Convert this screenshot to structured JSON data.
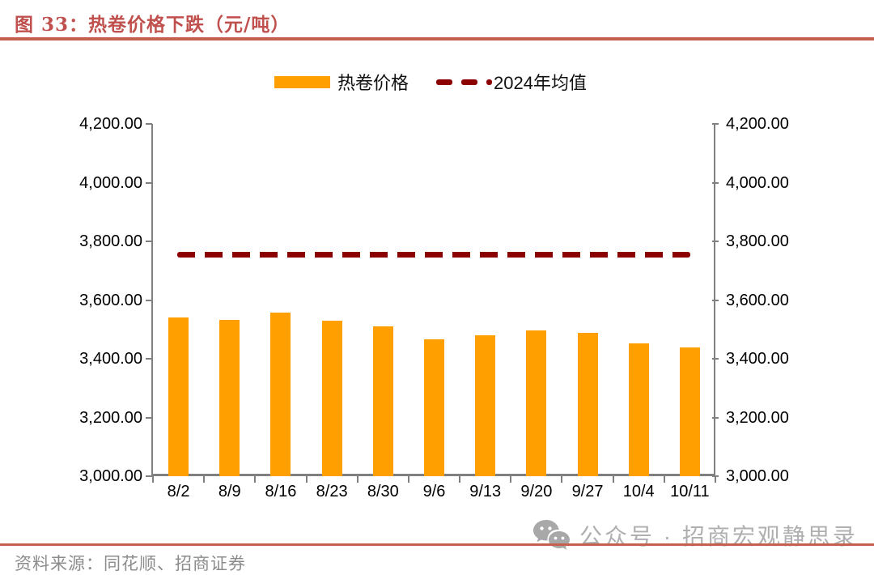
{
  "figure": {
    "title": "图 33：热卷价格下跌（元/吨）",
    "source_note": "资料来源：同花顺、招商证券",
    "watermark_text": "公众号 · 招商宏观静思录"
  },
  "legend": {
    "bar": {
      "label": "热卷价格",
      "color": "#FFA000"
    },
    "line": {
      "label": "2024年均值",
      "color": "#8B0000"
    }
  },
  "chart_data": {
    "type": "bar",
    "title": "热卷价格下跌（元/吨）",
    "categories": [
      "8/2",
      "8/9",
      "8/16",
      "8/23",
      "8/30",
      "9/6",
      "9/13",
      "9/20",
      "9/27",
      "10/4",
      "10/11"
    ],
    "series": [
      {
        "name": "热卷价格",
        "type": "bar",
        "color": "#FFA000",
        "values": [
          3540,
          3533,
          3558,
          3530,
          3510,
          3466,
          3480,
          3496,
          3489,
          3452,
          3440
        ]
      },
      {
        "name": "2024年均值",
        "type": "dashed-horizontal-line",
        "color": "#8B0000",
        "value": 3755
      }
    ],
    "y_axis": {
      "min": 3000,
      "max": 4200,
      "step": 200,
      "tick_labels": [
        "3,000.00",
        "3,200.00",
        "3,400.00",
        "3,600.00",
        "3,800.00",
        "4,000.00",
        "4,200.00"
      ]
    },
    "secondary_y_axis": "mirror-of-left",
    "grid": false,
    "legend_position": "top"
  },
  "colors": {
    "accent_rule": "#C4624F",
    "title_text": "#C0504D",
    "bar": "#FFA000",
    "average_line": "#8B0000",
    "axis_line": "#808080",
    "axis_text": "#000000",
    "source_text": "#8C8C8C",
    "watermark": "#AFAFAF"
  }
}
